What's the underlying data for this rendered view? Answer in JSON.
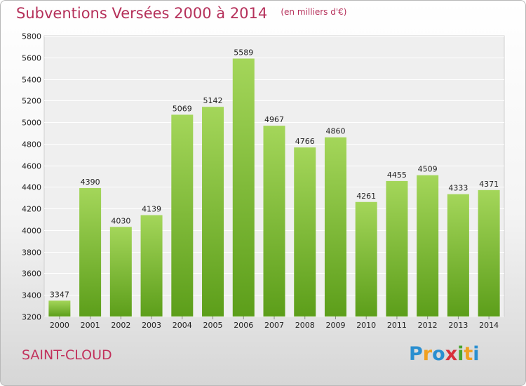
{
  "header": {
    "title": "Subventions Versées 2000 à 2014",
    "unit": "(en milliers d'€)"
  },
  "footer": {
    "city": "SAINT-CLOUD",
    "logo": "Proxiti"
  },
  "colors": {
    "bar_top": "#a4d65a",
    "bar_bottom": "#5c9e1a",
    "title": "#b5305a"
  },
  "chart_data": {
    "type": "bar",
    "title": "Subventions Versées 2000 à 2014",
    "subtitle": "(en milliers d'€)",
    "categories": [
      "2000",
      "2001",
      "2002",
      "2003",
      "2004",
      "2005",
      "2006",
      "2007",
      "2008",
      "2009",
      "2010",
      "2011",
      "2012",
      "2013",
      "2014"
    ],
    "values": [
      3347,
      4390,
      4030,
      4139,
      5069,
      5142,
      5589,
      4967,
      4766,
      4860,
      4261,
      4455,
      4509,
      4333,
      4371
    ],
    "ylim": [
      3200,
      5800
    ],
    "yticks": [
      3200,
      3400,
      3600,
      3800,
      4000,
      4200,
      4400,
      4600,
      4800,
      5000,
      5200,
      5400,
      5600,
      5800
    ],
    "grid": true,
    "xlabel": "",
    "ylabel": ""
  }
}
